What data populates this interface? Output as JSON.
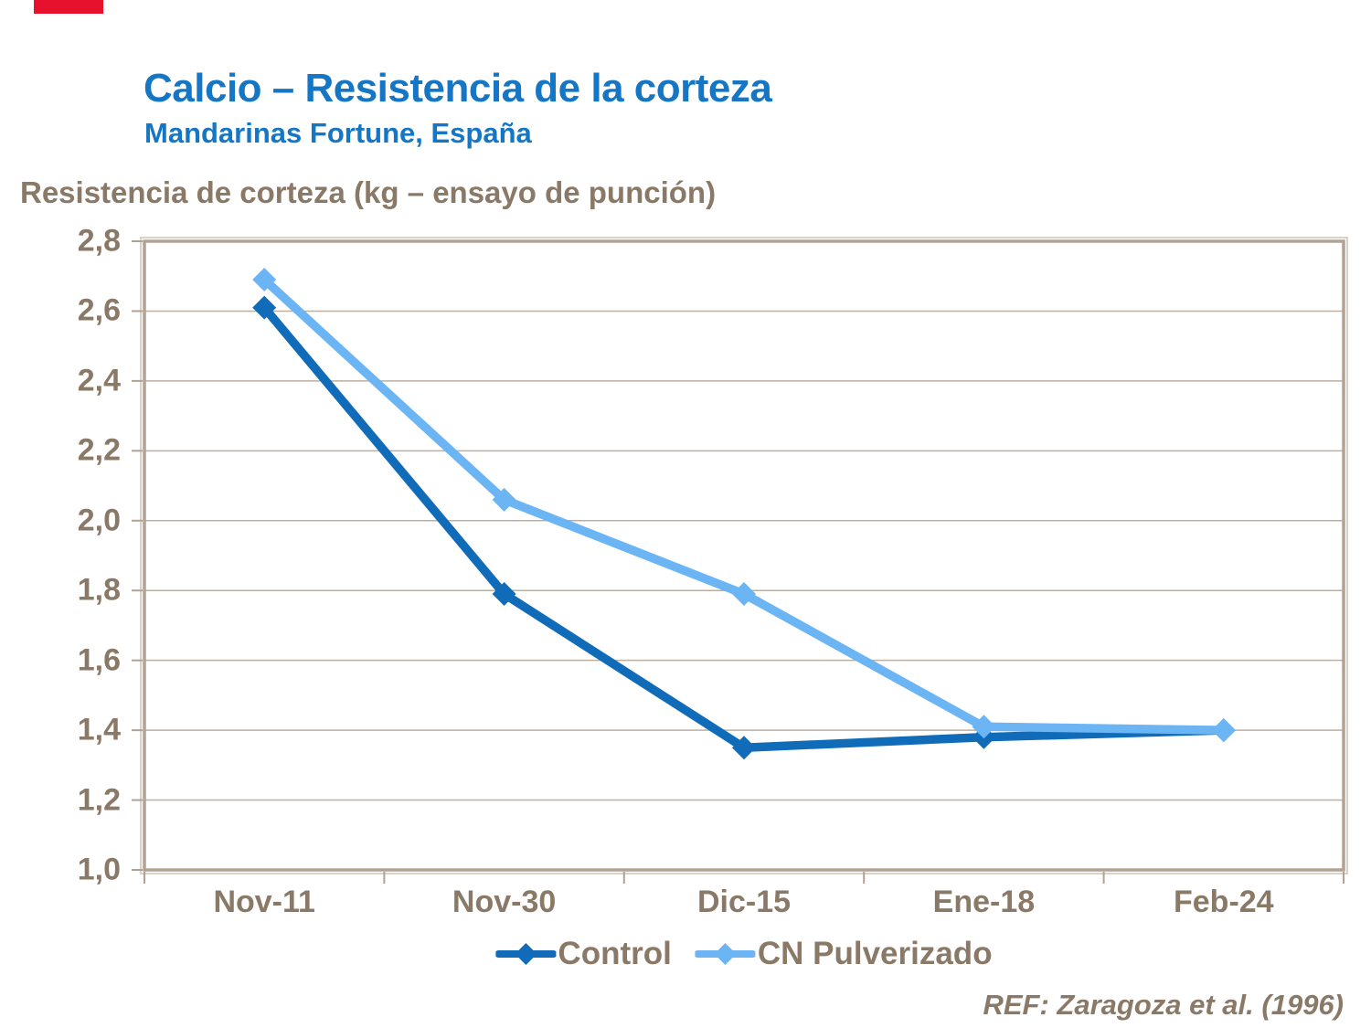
{
  "page": {
    "title": "Calcio – Resistencia de la corteza",
    "subtitle": "Mandarinas Fortune, España",
    "ref_note": "REF: Zaragoza et al. (1996)",
    "accent_red": "#E8112D",
    "title_color": "#1476C5",
    "text_color": "#8A7967"
  },
  "chart_data": {
    "type": "line",
    "title": "Resistencia de corteza (kg – ensayo de punción)",
    "categories": [
      "Nov-11",
      "Nov-30",
      "Dic-15",
      "Ene-18",
      "Feb-24"
    ],
    "series": [
      {
        "name": "Control",
        "color": "#106CB8",
        "values": [
          2.61,
          1.79,
          1.35,
          1.38,
          1.4
        ]
      },
      {
        "name": "CN Pulverizado",
        "color": "#6CB5F5",
        "values": [
          2.69,
          2.06,
          1.79,
          1.41,
          1.4
        ]
      }
    ],
    "ylim": [
      1.0,
      2.8
    ],
    "ytick_step": 0.2,
    "ytick_labels": [
      "1,0",
      "1,2",
      "1,4",
      "1,6",
      "1,8",
      "2,0",
      "2,2",
      "2,4",
      "2,6",
      "2,8"
    ],
    "grid": true,
    "marker": "diamond",
    "legend_position": "bottom",
    "axis_color": "#B1A293",
    "axis_highlight_color": "#D9D2C8",
    "grid_color": "#BCAFA1"
  }
}
